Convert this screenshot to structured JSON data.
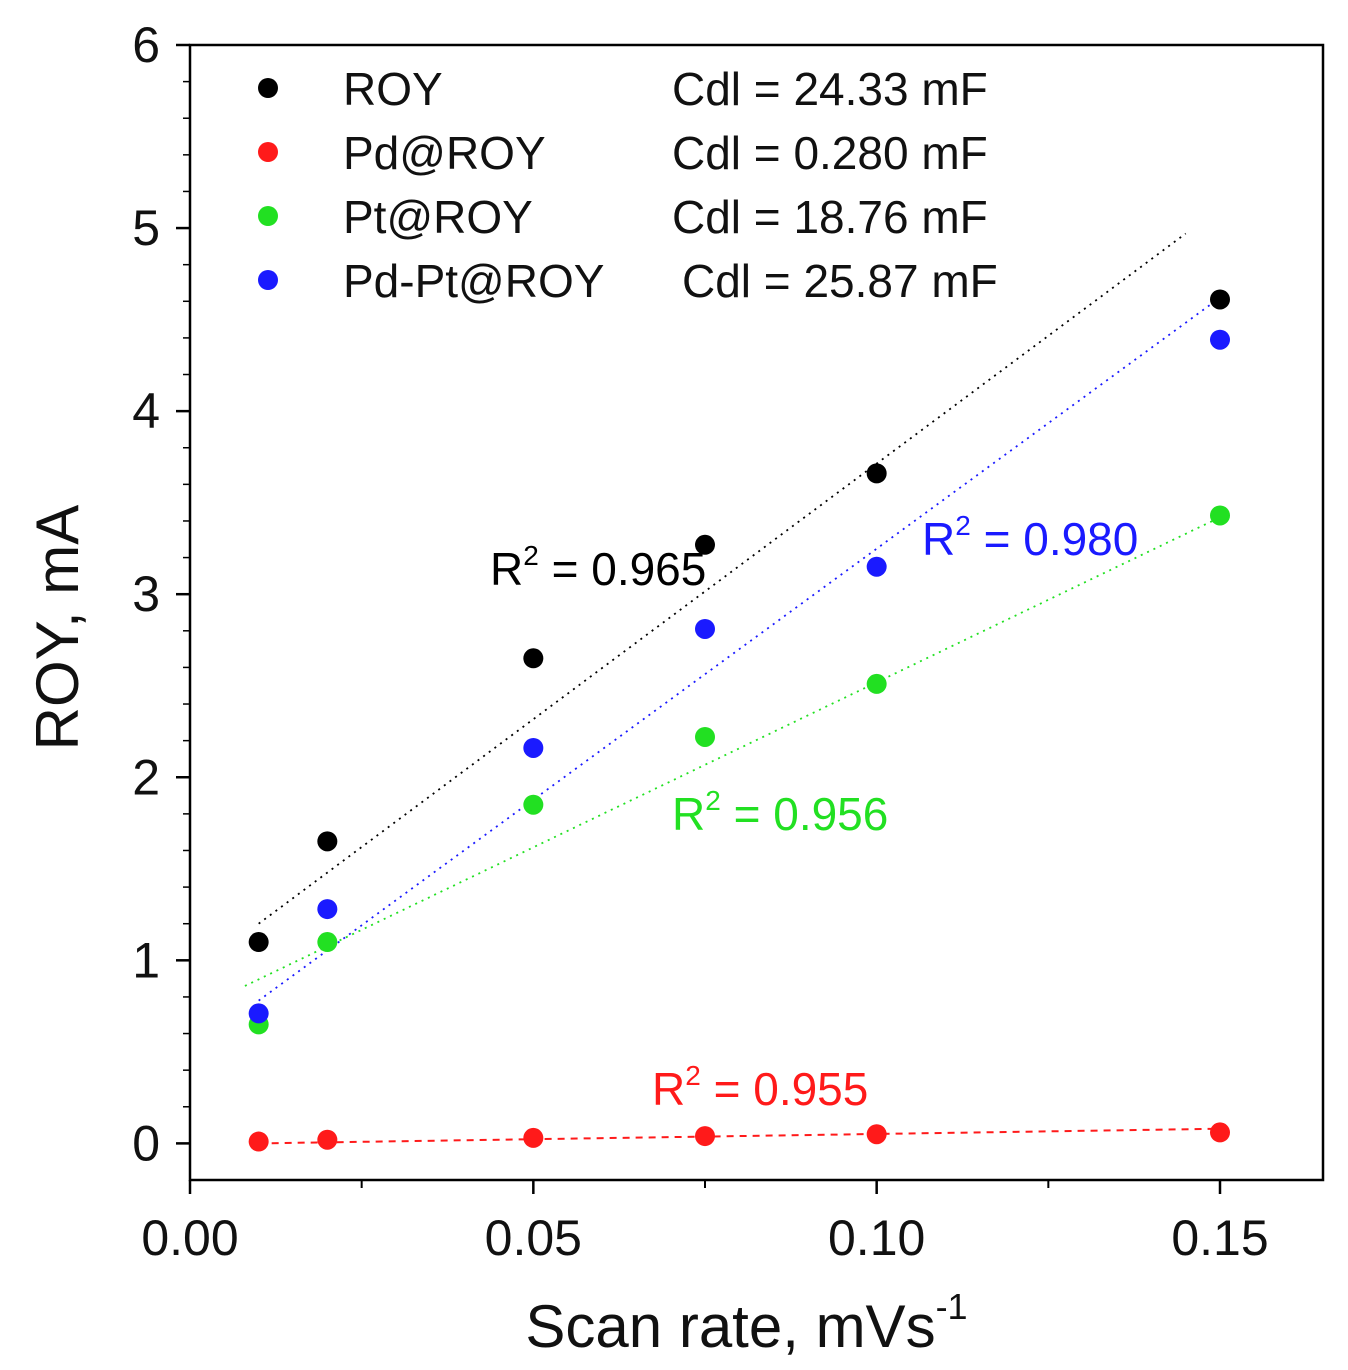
{
  "chart_data": {
    "type": "scatter",
    "title": "",
    "xlabel": "Scan rate, mVs",
    "xlabel_sup": "-1",
    "ylabel": "ROY, mA",
    "xlim": [
      0.0,
      0.165
    ],
    "ylim": [
      -0.2,
      6.0
    ],
    "x_ticks": [
      0.0,
      0.05,
      0.1,
      0.15
    ],
    "x_tick_labels": [
      "0.00",
      "0.05",
      "0.10",
      "0.15"
    ],
    "y_ticks": [
      0,
      1,
      2,
      3,
      4,
      5,
      6
    ],
    "y_tick_labels": [
      "0",
      "1",
      "2",
      "3",
      "4",
      "5",
      "6"
    ],
    "grid": false,
    "legend_position": "top-left",
    "x": [
      0.01,
      0.02,
      0.05,
      0.075,
      0.1,
      0.15
    ],
    "series": [
      {
        "name": "ROY",
        "color": "#000000",
        "values": [
          1.1,
          1.65,
          2.65,
          3.27,
          3.66,
          4.61
        ],
        "cdl_label": "Cdl = 24.33 mF",
        "fit": {
          "x_range": [
            0.01,
            0.145
          ],
          "y_range": [
            1.2,
            4.97
          ],
          "style": "dotted"
        },
        "r2_label": "R",
        "r2_value": " = 0.965",
        "r2_sup": "2"
      },
      {
        "name": "Pd@ROY",
        "color": "#ff1a1a",
        "values": [
          0.01,
          0.02,
          0.03,
          0.04,
          0.05,
          0.06
        ],
        "cdl_label": "Cdl = 0.280 mF",
        "fit": {
          "x_range": [
            0.01,
            0.15
          ],
          "y_range": [
            0.0,
            0.08
          ],
          "style": "dashed"
        },
        "r2_label": "R",
        "r2_value": " = 0.955",
        "r2_sup": "2"
      },
      {
        "name": "Pt@ROY",
        "color": "#22e022",
        "values": [
          0.65,
          1.1,
          1.85,
          2.22,
          2.51,
          3.43
        ],
        "cdl_label": "Cdl = 18.76 mF",
        "fit": {
          "x_range": [
            0.008,
            0.15
          ],
          "y_range": [
            0.86,
            3.42
          ],
          "style": "dotted"
        },
        "r2_label": "R",
        "r2_value": " = 0.956",
        "r2_sup": "2"
      },
      {
        "name": "Pd-Pt@ROY",
        "color": "#1a1aff",
        "values": [
          0.71,
          1.28,
          2.16,
          2.81,
          3.15,
          4.39
        ],
        "cdl_label": "Cdl = 25.87 mF",
        "fit": {
          "x_range": [
            0.01,
            0.15
          ],
          "y_range": [
            0.78,
            4.62
          ],
          "style": "dotted"
        },
        "r2_label": "R",
        "r2_value": " = 0.980",
        "r2_sup": "2"
      }
    ]
  }
}
